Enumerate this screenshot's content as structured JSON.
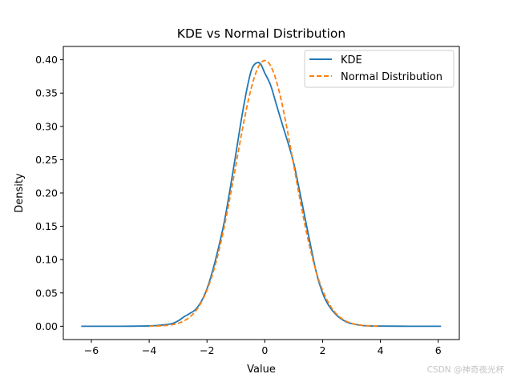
{
  "chart_data": {
    "type": "line",
    "title": "KDE vs Normal Distribution",
    "xlabel": "Value",
    "ylabel": "Density",
    "xlim": [
      -6.97,
      6.73
    ],
    "ylim": [
      -0.02,
      0.42
    ],
    "xticks": [
      -6,
      -4,
      -2,
      0,
      2,
      4,
      6
    ],
    "xtick_labels": [
      "−6",
      "−4",
      "−2",
      "0",
      "2",
      "4",
      "6"
    ],
    "yticks": [
      0.0,
      0.05,
      0.1,
      0.15,
      0.2,
      0.25,
      0.3,
      0.35,
      0.4
    ],
    "ytick_labels": [
      "0.00",
      "0.05",
      "0.10",
      "0.15",
      "0.20",
      "0.25",
      "0.30",
      "0.35",
      "0.40"
    ],
    "grid": false,
    "legend_position": "top-right",
    "series": [
      {
        "name": "KDE",
        "color": "#1f77b4",
        "style": "solid",
        "x": [
          -6.35,
          -5.0,
          -4.0,
          -3.5,
          -3.2,
          -3.0,
          -2.8,
          -2.6,
          -2.4,
          -2.2,
          -2.0,
          -1.8,
          -1.6,
          -1.4,
          -1.2,
          -1.0,
          -0.8,
          -0.6,
          -0.45,
          -0.3,
          -0.15,
          0.0,
          0.2,
          0.4,
          0.6,
          0.8,
          1.0,
          1.2,
          1.4,
          1.6,
          1.8,
          2.0,
          2.2,
          2.5,
          2.8,
          3.0,
          3.3,
          3.6,
          4.0,
          5.0,
          6.1
        ],
        "y": [
          0.0,
          0.0,
          0.0005,
          0.002,
          0.004,
          0.008,
          0.014,
          0.019,
          0.025,
          0.037,
          0.056,
          0.084,
          0.118,
          0.157,
          0.206,
          0.259,
          0.313,
          0.36,
          0.386,
          0.395,
          0.394,
          0.38,
          0.362,
          0.333,
          0.304,
          0.276,
          0.245,
          0.204,
          0.161,
          0.118,
          0.078,
          0.05,
          0.032,
          0.016,
          0.007,
          0.004,
          0.0015,
          0.0005,
          0.0002,
          0.0,
          0.0
        ]
      },
      {
        "name": "Normal Distribution",
        "color": "#ff7f0e",
        "style": "dashed",
        "mean": 0,
        "std": 1,
        "x_range": [
          -4,
          4
        ]
      }
    ]
  },
  "watermark": "CSDN @神奇夜光杯"
}
